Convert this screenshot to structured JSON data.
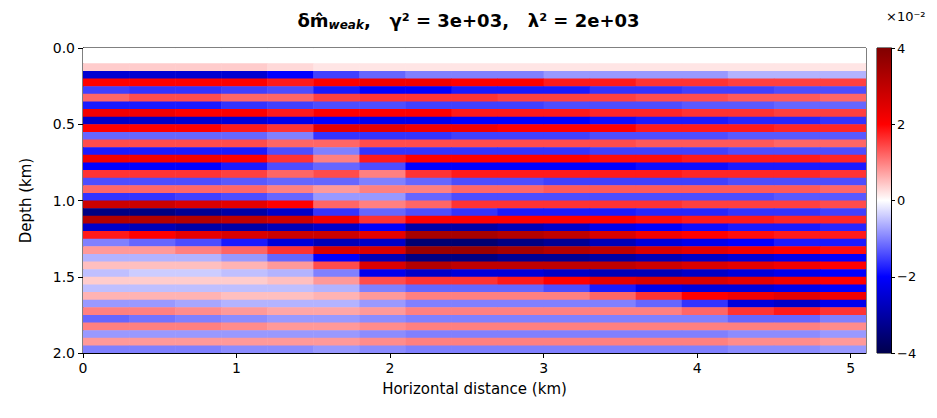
{
  "chart_data": {
    "type": "heatmap",
    "title": {
      "symbol": "δm̂",
      "subscript": "weak",
      "rest": ",   γ² = 3e+03,   λ² = 2e+03"
    },
    "x_label": "Horizontal distance (km)",
    "y_label": "Depth (km)",
    "xlim": [
      0,
      5.1
    ],
    "xticks": [
      0,
      1,
      2,
      3,
      4,
      5
    ],
    "ylim": [
      2,
      0
    ],
    "yticks": [
      {
        "value": 0,
        "label": "0.0"
      },
      {
        "value": 0.5,
        "label": "0.5"
      },
      {
        "value": 1,
        "label": "1.0"
      },
      {
        "value": 1.5,
        "label": "1.5"
      },
      {
        "value": 2,
        "label": "2.0"
      }
    ],
    "grid": false,
    "colorbar": {
      "range": [
        -4,
        4
      ],
      "ticks": [
        {
          "value": -4,
          "label": "−4"
        },
        {
          "value": -2,
          "label": "−2"
        },
        0,
        2,
        4
      ],
      "scale_label": "×10⁻²"
    },
    "cells": {
      "x": [
        0.15,
        0.45,
        0.75,
        1.05,
        1.35,
        1.65,
        1.95,
        2.25,
        2.55,
        2.85,
        3.15,
        3.45,
        3.75,
        4.05,
        4.35,
        4.65,
        4.95
      ],
      "y": [
        0.025,
        0.075,
        0.125,
        0.175,
        0.225,
        0.275,
        0.325,
        0.375,
        0.425,
        0.475,
        0.525,
        0.575,
        0.625,
        0.675,
        0.725,
        0.775,
        0.825,
        0.875,
        0.925,
        0.975,
        1.025,
        1.075,
        1.125,
        1.175,
        1.225,
        1.275,
        1.325,
        1.375,
        1.425,
        1.475,
        1.525,
        1.575,
        1.625,
        1.675,
        1.725,
        1.775,
        1.825,
        1.875,
        1.925,
        1.975
      ],
      "values": [
        [
          0,
          0,
          0,
          0,
          0,
          0,
          0,
          0,
          0,
          0,
          0,
          0,
          0,
          0,
          0,
          0,
          0
        ],
        [
          0,
          0,
          0,
          0,
          0,
          0,
          0,
          0,
          0,
          0,
          0,
          0,
          0,
          0,
          0,
          0,
          0
        ],
        [
          0.4,
          0.4,
          0.4,
          0.4,
          0.3,
          0.2,
          0.2,
          0.2,
          0.2,
          0.2,
          0.2,
          0.2,
          0.2,
          0.2,
          0.2,
          0.2,
          0.2
        ],
        [
          -2.5,
          -2.5,
          -2.5,
          -2.5,
          -2.0,
          -1.5,
          -1.2,
          -1.0,
          -1.0,
          -1.0,
          -0.8,
          -0.8,
          -0.8,
          -0.8,
          -0.6,
          -0.6,
          -0.6
        ],
        [
          2.0,
          2.0,
          2.0,
          2.0,
          1.8,
          2.0,
          2.2,
          2.2,
          2.0,
          2.0,
          1.8,
          1.8,
          1.6,
          1.6,
          1.5,
          1.5,
          1.5
        ],
        [
          -1.5,
          -1.6,
          -1.6,
          -1.5,
          -1.4,
          -1.8,
          -2.0,
          -2.0,
          -1.8,
          -1.8,
          -1.8,
          -1.6,
          -1.6,
          -1.5,
          -1.5,
          -1.4,
          -1.4
        ],
        [
          1.2,
          1.4,
          1.4,
          1.2,
          1.2,
          1.5,
          1.6,
          1.6,
          1.6,
          1.5,
          1.5,
          1.5,
          1.4,
          1.4,
          1.3,
          1.3,
          1.2
        ],
        [
          -1.8,
          -1.8,
          -1.8,
          -1.6,
          -1.5,
          -1.4,
          -1.4,
          -1.5,
          -1.5,
          -1.5,
          -1.4,
          -1.4,
          -1.4,
          -1.3,
          -1.3,
          -1.2,
          -1.2
        ],
        [
          2.2,
          2.2,
          2.0,
          2.0,
          1.8,
          2.0,
          2.0,
          2.0,
          1.8,
          1.8,
          1.8,
          1.7,
          1.7,
          1.6,
          1.6,
          1.5,
          1.5
        ],
        [
          -2.6,
          -2.6,
          -2.5,
          -2.4,
          -2.2,
          -2.0,
          -2.2,
          -2.2,
          -2.0,
          -2.0,
          -2.0,
          -1.9,
          -1.8,
          -1.8,
          -1.7,
          -1.7,
          -1.6
        ],
        [
          2.0,
          2.0,
          2.0,
          1.8,
          1.6,
          2.4,
          2.4,
          2.2,
          2.2,
          2.0,
          2.0,
          2.0,
          1.8,
          1.8,
          1.8,
          1.7,
          1.7
        ],
        [
          -1.2,
          -1.2,
          -1.2,
          -1.2,
          -1.0,
          -1.6,
          -1.6,
          -1.6,
          -1.5,
          -1.5,
          -1.5,
          -1.4,
          -1.4,
          -1.4,
          -1.3,
          -1.3,
          -1.3
        ],
        [
          1.4,
          1.4,
          1.4,
          1.4,
          1.2,
          1.2,
          1.4,
          1.4,
          1.4,
          1.4,
          1.4,
          1.4,
          1.3,
          1.3,
          1.3,
          1.2,
          1.2
        ],
        [
          -1.8,
          -1.8,
          -1.8,
          -1.8,
          -1.4,
          -1.0,
          -1.6,
          -1.6,
          -1.6,
          -1.6,
          -1.6,
          -1.5,
          -1.5,
          -1.5,
          -1.4,
          -1.4,
          -1.4
        ],
        [
          2.2,
          2.2,
          2.2,
          2.0,
          1.6,
          1.0,
          1.8,
          2.0,
          2.0,
          2.0,
          2.0,
          1.9,
          1.9,
          1.8,
          1.8,
          1.8,
          1.7
        ],
        [
          -2.0,
          -2.0,
          -2.0,
          -1.8,
          -1.4,
          -1.2,
          -1.4,
          -2.0,
          -2.0,
          -2.0,
          -2.0,
          -2.0,
          -1.9,
          -1.9,
          -1.8,
          -1.8,
          -1.8
        ],
        [
          1.6,
          1.6,
          1.6,
          1.5,
          1.2,
          1.4,
          1.0,
          1.6,
          1.8,
          1.8,
          1.8,
          1.8,
          1.8,
          1.7,
          1.7,
          1.7,
          1.6
        ],
        [
          -1.4,
          -1.4,
          -1.4,
          -1.3,
          -1.2,
          -1.2,
          -1.0,
          -1.2,
          -1.4,
          -1.4,
          -1.5,
          -1.5,
          -1.5,
          -1.5,
          -1.4,
          -1.4,
          -1.4
        ],
        [
          1.2,
          1.2,
          1.2,
          1.2,
          1.0,
          0.8,
          1.0,
          1.0,
          1.2,
          1.2,
          1.3,
          1.3,
          1.3,
          1.3,
          1.3,
          1.3,
          1.2
        ],
        [
          -1.6,
          -1.6,
          -1.5,
          -1.4,
          -1.2,
          -0.8,
          -0.8,
          -1.2,
          -1.4,
          -1.4,
          -1.4,
          -1.4,
          -1.4,
          -1.4,
          -1.4,
          -1.3,
          -1.3
        ],
        [
          2.8,
          2.8,
          2.6,
          2.4,
          2.0,
          1.2,
          1.0,
          1.2,
          1.6,
          1.6,
          1.6,
          1.6,
          1.6,
          1.5,
          1.5,
          1.5,
          1.4
        ],
        [
          -3.4,
          -3.4,
          -3.2,
          -3.0,
          -2.6,
          -1.6,
          -1.2,
          -1.4,
          -1.6,
          -1.8,
          -1.8,
          -1.8,
          -1.7,
          -1.7,
          -1.6,
          -1.6,
          -1.5
        ],
        [
          3.2,
          3.2,
          3.2,
          3.0,
          2.8,
          2.2,
          1.6,
          2.0,
          2.0,
          2.0,
          2.0,
          2.0,
          1.9,
          1.8,
          1.8,
          1.7,
          1.7
        ],
        [
          -2.6,
          -2.8,
          -3.0,
          -3.0,
          -2.8,
          -2.6,
          -2.0,
          -3.0,
          -3.0,
          -2.8,
          -2.6,
          -2.2,
          -2.0,
          -1.9,
          -1.8,
          -1.8,
          -1.7
        ],
        [
          1.8,
          2.0,
          2.4,
          2.6,
          2.8,
          2.8,
          2.4,
          3.4,
          3.4,
          3.2,
          3.0,
          2.6,
          2.2,
          2.0,
          1.9,
          1.8,
          1.8
        ],
        [
          -1.0,
          -1.2,
          -1.4,
          -1.8,
          -2.4,
          -2.8,
          -2.6,
          -3.6,
          -3.6,
          -3.4,
          -3.2,
          -2.8,
          -2.4,
          -2.2,
          -2.0,
          -1.8,
          -1.8
        ],
        [
          0.8,
          0.8,
          1.0,
          1.2,
          1.6,
          2.6,
          2.6,
          3.6,
          3.6,
          3.4,
          3.2,
          3.0,
          2.6,
          2.4,
          2.2,
          2.0,
          1.9
        ],
        [
          -0.6,
          -0.6,
          -0.6,
          -0.8,
          -1.2,
          -2.0,
          -2.8,
          -3.4,
          -3.4,
          -3.2,
          -3.2,
          -3.0,
          -2.8,
          -2.6,
          -2.4,
          -2.2,
          -2.0
        ],
        [
          0.5,
          0.5,
          0.5,
          0.6,
          0.8,
          1.4,
          2.6,
          3.2,
          3.0,
          3.0,
          3.0,
          3.0,
          2.8,
          2.6,
          2.4,
          2.2,
          2.0
        ],
        [
          -0.5,
          -0.4,
          -0.4,
          -0.5,
          -0.6,
          -1.0,
          -2.2,
          -2.6,
          -2.4,
          -2.4,
          -2.6,
          -2.8,
          -2.8,
          -2.6,
          -2.4,
          -2.2,
          -2.0
        ],
        [
          0.4,
          0.4,
          0.4,
          0.4,
          0.5,
          0.8,
          1.4,
          1.6,
          1.6,
          1.8,
          2.0,
          2.4,
          2.6,
          2.6,
          2.4,
          2.2,
          2.0
        ],
        [
          -0.5,
          -0.5,
          -0.5,
          -0.5,
          -0.5,
          -0.6,
          -1.0,
          -1.2,
          -1.2,
          -1.2,
          -1.4,
          -1.8,
          -2.2,
          -2.4,
          -2.4,
          -2.2,
          -2.0
        ],
        [
          0.6,
          0.6,
          0.6,
          0.5,
          0.5,
          0.6,
          0.8,
          1.0,
          1.0,
          1.0,
          1.0,
          1.2,
          1.6,
          2.0,
          2.2,
          2.4,
          2.2
        ],
        [
          -0.8,
          -0.8,
          -0.7,
          -0.6,
          -0.6,
          -0.6,
          -0.8,
          -1.0,
          -1.0,
          -1.0,
          -1.0,
          -1.0,
          -1.2,
          -1.6,
          -2.4,
          -2.6,
          -2.2
        ],
        [
          1.0,
          1.0,
          0.9,
          0.8,
          0.7,
          0.7,
          0.8,
          1.0,
          1.0,
          1.0,
          1.0,
          1.0,
          1.0,
          1.2,
          1.6,
          1.8,
          1.6
        ],
        [
          -1.2,
          -1.1,
          -1.0,
          -0.9,
          -0.8,
          -0.8,
          -0.9,
          -1.0,
          -1.0,
          -1.0,
          -1.0,
          -1.0,
          -1.0,
          -1.0,
          -1.2,
          -1.2,
          -1.0
        ],
        [
          1.0,
          1.0,
          1.0,
          0.9,
          0.8,
          0.8,
          0.9,
          1.0,
          1.0,
          1.0,
          1.0,
          1.0,
          1.0,
          1.0,
          1.0,
          1.0,
          0.9
        ],
        [
          -0.8,
          -0.8,
          -0.8,
          -0.8,
          -0.8,
          -0.8,
          -0.9,
          -1.0,
          -1.0,
          -1.0,
          -1.0,
          -1.0,
          -1.0,
          -1.0,
          -0.9,
          -0.9,
          -0.8
        ],
        [
          0.8,
          0.8,
          0.8,
          0.8,
          0.8,
          0.8,
          0.9,
          1.0,
          1.0,
          1.0,
          1.0,
          1.0,
          1.0,
          1.0,
          0.9,
          0.9,
          0.8
        ],
        [
          -1.0,
          -1.0,
          -1.0,
          -0.9,
          -0.9,
          -0.8,
          -0.9,
          -1.0,
          -1.0,
          -1.0,
          -1.0,
          -1.0,
          -1.0,
          -1.0,
          -0.9,
          -0.9,
          -0.8
        ]
      ]
    }
  }
}
